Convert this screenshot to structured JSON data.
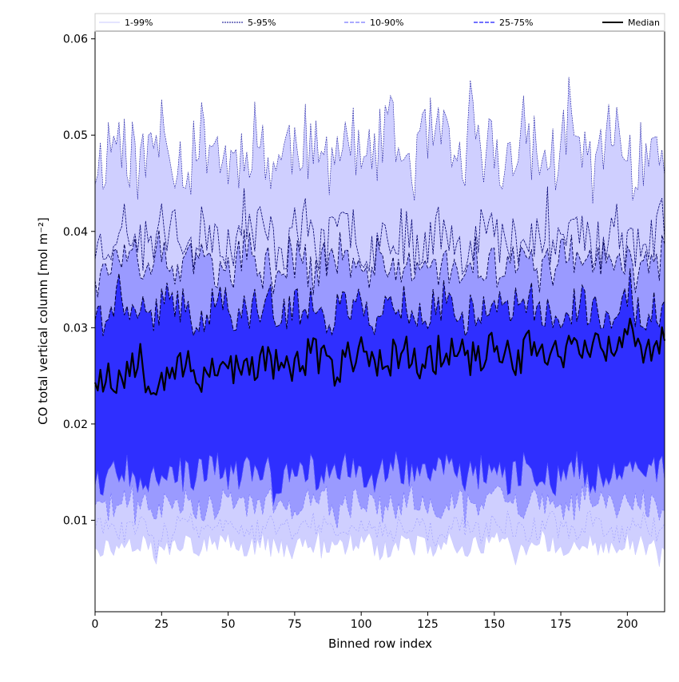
{
  "chart_data": {
    "type": "area",
    "xlabel": "Binned row index",
    "ylabel": "CO total vertical column [mol m⁻²]",
    "xlim": [
      0,
      214
    ],
    "ylim": [
      0.0005,
      0.0608
    ],
    "x_ticks": [
      0,
      25,
      50,
      75,
      100,
      125,
      150,
      175,
      200
    ],
    "y_ticks": [
      0.01,
      0.02,
      0.03,
      0.04,
      0.05,
      0.06
    ],
    "grid": false,
    "legend_position": "top, above plot",
    "n_points": 215,
    "bands": [
      {
        "name": "1-99%",
        "lower_percentile": 1,
        "upper_percentile": 99,
        "fill": "#cfcfff",
        "line": "#c8c8ff"
      },
      {
        "name": "5-95%",
        "lower_percentile": 5,
        "upper_percentile": 95,
        "fill": "#cfcfff",
        "line": "#00008b"
      },
      {
        "name": "10-90%",
        "lower_percentile": 10,
        "upper_percentile": 90,
        "fill": "#9a9aff",
        "line": "#00005a"
      },
      {
        "name": "25-75%",
        "lower_percentile": 25,
        "upper_percentile": 75,
        "fill": "#5959ff",
        "line": "#000040"
      }
    ],
    "inner_fill": "#2828ff",
    "median": {
      "name": "Median",
      "color": "#000000"
    },
    "series_levels": {
      "p99_upper": {
        "base": 0.0485,
        "amp": 0.0042
      },
      "p95_upper": {
        "base": 0.0395,
        "amp": 0.003
      },
      "p90_upper": {
        "base": 0.0368,
        "amp": 0.0026
      },
      "p75_upper": {
        "base": 0.032,
        "amp": 0.0022
      },
      "median": {
        "base": 0.025,
        "amp": 0.002,
        "trend": 1.7e-05
      },
      "p25_lower": {
        "base": 0.015,
        "amp": 0.0018
      },
      "p10_lower": {
        "base": 0.0118,
        "amp": 0.0016
      },
      "p5_lower": {
        "base": 0.0093,
        "amp": 0.0013
      },
      "p1_lower": {
        "base": 0.0075,
        "amp": 0.0012
      }
    }
  }
}
